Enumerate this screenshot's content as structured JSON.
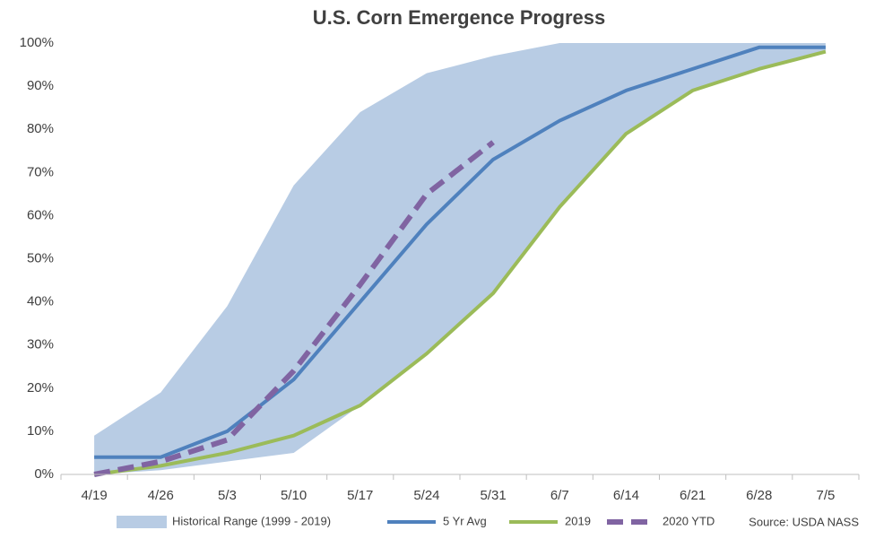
{
  "chart_data": {
    "type": "line",
    "title": "U.S. Corn Emergence Progress",
    "source": "Source: USDA NASS",
    "categories": [
      "4/19",
      "4/26",
      "5/3",
      "5/10",
      "5/17",
      "5/24",
      "5/31",
      "6/7",
      "6/14",
      "6/21",
      "6/28",
      "7/5"
    ],
    "ylim": [
      0,
      100
    ],
    "yticks": [
      {
        "value": 0,
        "label": "0%"
      },
      {
        "value": 10,
        "label": "10%"
      },
      {
        "value": 20,
        "label": "20%"
      },
      {
        "value": 30,
        "label": "30%"
      },
      {
        "value": 40,
        "label": "40%"
      },
      {
        "value": 50,
        "label": "50%"
      },
      {
        "value": 60,
        "label": "60%"
      },
      {
        "value": 70,
        "label": "70%"
      },
      {
        "value": 80,
        "label": "80%"
      },
      {
        "value": 90,
        "label": "90%"
      },
      {
        "value": 100,
        "label": "100%"
      }
    ],
    "grid": false,
    "legend": "bottom",
    "series": [
      {
        "name": "Historical Range (1999 - 2019)",
        "type": "range",
        "color": "#b8cce4",
        "low": [
          0,
          1,
          3,
          5,
          16,
          28,
          42,
          62,
          79,
          89,
          94,
          98
        ],
        "high": [
          9,
          19,
          39,
          67,
          84,
          93,
          97,
          100,
          100,
          100,
          100,
          100
        ]
      },
      {
        "name": "5 Yr Avg",
        "color": "#4f81bd",
        "dash": false,
        "values": [
          4,
          4,
          10,
          22,
          40,
          58,
          73,
          82,
          89,
          94,
          99,
          99
        ]
      },
      {
        "name": "2019",
        "color": "#9bbb59",
        "dash": false,
        "values": [
          0,
          2,
          5,
          9,
          16,
          28,
          42,
          62,
          79,
          89,
          94,
          98
        ]
      },
      {
        "name": "2020 YTD",
        "color": "#8064a2",
        "dash": true,
        "values": [
          0,
          3,
          8,
          24,
          44,
          65,
          77,
          null,
          null,
          null,
          null,
          null
        ]
      }
    ]
  }
}
